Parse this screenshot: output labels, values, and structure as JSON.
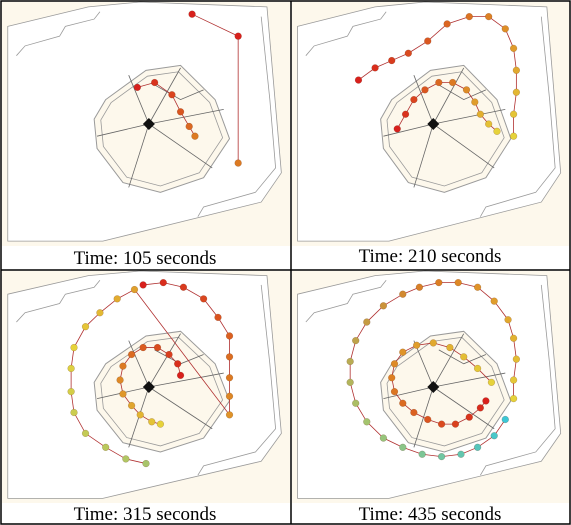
{
  "panels": [
    {
      "caption": "Time: 105 seconds",
      "outer": [
        [
          0.66,
          0.05
        ],
        [
          0.82,
          0.14
        ],
        [
          0.82,
          0.66
        ]
      ],
      "inner": [
        [
          0.47,
          0.35
        ],
        [
          0.53,
          0.33
        ],
        [
          0.59,
          0.38
        ],
        [
          0.62,
          0.45
        ],
        [
          0.65,
          0.51
        ],
        [
          0.67,
          0.55
        ]
      ]
    },
    {
      "caption": "Time: 210 seconds",
      "outer": [
        [
          0.24,
          0.32
        ],
        [
          0.3,
          0.27
        ],
        [
          0.36,
          0.24
        ],
        [
          0.42,
          0.21
        ],
        [
          0.49,
          0.16
        ],
        [
          0.56,
          0.09
        ],
        [
          0.64,
          0.06
        ],
        [
          0.71,
          0.06
        ],
        [
          0.77,
          0.11
        ],
        [
          0.8,
          0.19
        ],
        [
          0.81,
          0.28
        ],
        [
          0.81,
          0.37
        ],
        [
          0.8,
          0.46
        ],
        [
          0.8,
          0.55
        ]
      ],
      "inner": [
        [
          0.38,
          0.52
        ],
        [
          0.41,
          0.46
        ],
        [
          0.44,
          0.4
        ],
        [
          0.48,
          0.36
        ],
        [
          0.53,
          0.33
        ],
        [
          0.58,
          0.33
        ],
        [
          0.63,
          0.36
        ],
        [
          0.66,
          0.41
        ],
        [
          0.68,
          0.46
        ],
        [
          0.71,
          0.5
        ],
        [
          0.74,
          0.53
        ]
      ]
    },
    {
      "caption": "Time: 315  seconds",
      "outer": [
        [
          0.49,
          0.06
        ],
        [
          0.56,
          0.05
        ],
        [
          0.63,
          0.07
        ],
        [
          0.7,
          0.12
        ],
        [
          0.75,
          0.2
        ],
        [
          0.79,
          0.28
        ],
        [
          0.79,
          0.37
        ],
        [
          0.79,
          0.46
        ],
        [
          0.79,
          0.54
        ],
        [
          0.79,
          0.62
        ],
        [
          0.46,
          0.08
        ],
        [
          0.4,
          0.12
        ],
        [
          0.34,
          0.18
        ],
        [
          0.29,
          0.24
        ],
        [
          0.25,
          0.33
        ],
        [
          0.24,
          0.42
        ],
        [
          0.24,
          0.52
        ],
        [
          0.25,
          0.61
        ],
        [
          0.29,
          0.7
        ],
        [
          0.36,
          0.76
        ],
        [
          0.43,
          0.81
        ],
        [
          0.5,
          0.83
        ]
      ],
      "inner": [
        [
          0.62,
          0.45
        ],
        [
          0.61,
          0.4
        ],
        [
          0.58,
          0.36
        ],
        [
          0.54,
          0.33
        ],
        [
          0.49,
          0.33
        ],
        [
          0.45,
          0.36
        ],
        [
          0.42,
          0.41
        ],
        [
          0.41,
          0.47
        ],
        [
          0.42,
          0.53
        ],
        [
          0.45,
          0.58
        ],
        [
          0.48,
          0.62
        ],
        [
          0.52,
          0.65
        ],
        [
          0.55,
          0.66
        ]
      ]
    },
    {
      "caption": "Time: 435 seconds",
      "outer": [
        [
          0.8,
          0.55
        ],
        [
          0.8,
          0.47
        ],
        [
          0.81,
          0.38
        ],
        [
          0.8,
          0.29
        ],
        [
          0.78,
          0.21
        ],
        [
          0.73,
          0.13
        ],
        [
          0.67,
          0.07
        ],
        [
          0.6,
          0.05
        ],
        [
          0.53,
          0.05
        ],
        [
          0.46,
          0.07
        ],
        [
          0.4,
          0.1
        ],
        [
          0.33,
          0.15
        ],
        [
          0.27,
          0.22
        ],
        [
          0.23,
          0.3
        ],
        [
          0.21,
          0.39
        ],
        [
          0.21,
          0.48
        ],
        [
          0.23,
          0.57
        ],
        [
          0.27,
          0.65
        ],
        [
          0.33,
          0.72
        ],
        [
          0.4,
          0.76
        ],
        [
          0.47,
          0.79
        ],
        [
          0.54,
          0.8
        ],
        [
          0.61,
          0.79
        ],
        [
          0.67,
          0.76
        ],
        [
          0.73,
          0.71
        ],
        [
          0.77,
          0.64
        ]
      ],
      "inner": [
        [
          0.72,
          0.48
        ],
        [
          0.67,
          0.42
        ],
        [
          0.62,
          0.37
        ],
        [
          0.57,
          0.33
        ],
        [
          0.51,
          0.31
        ],
        [
          0.45,
          0.32
        ],
        [
          0.4,
          0.35
        ],
        [
          0.37,
          0.4
        ],
        [
          0.36,
          0.46
        ],
        [
          0.37,
          0.52
        ],
        [
          0.4,
          0.57
        ],
        [
          0.44,
          0.61
        ],
        [
          0.49,
          0.64
        ],
        [
          0.54,
          0.66
        ],
        [
          0.59,
          0.66
        ],
        [
          0.64,
          0.63
        ],
        [
          0.68,
          0.59
        ],
        [
          0.7,
          0.56
        ]
      ]
    }
  ],
  "colors": {
    "early": "#d8201c",
    "mid_orange": "#dc7a22",
    "mid_yellow": "#e6d23a",
    "late_green": "#a8c46a",
    "late_cyan": "#3cc7d6",
    "background": "#fdf8ec",
    "outline": "#9a9a9a",
    "border": "#000000"
  }
}
